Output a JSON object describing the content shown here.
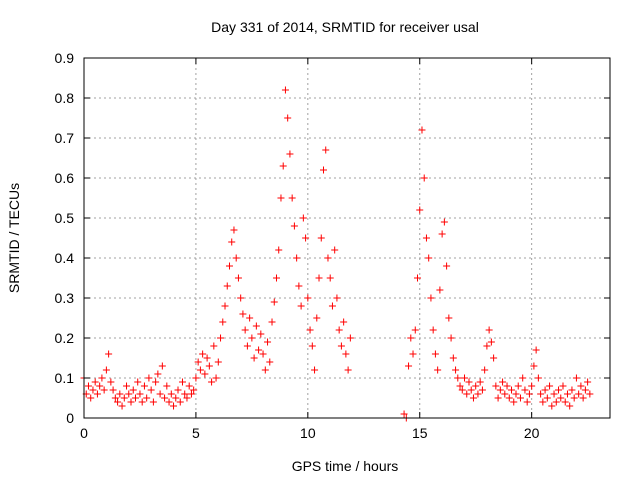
{
  "chart_data": {
    "type": "scatter",
    "title": "Day 331 of 2014, SRMTID for receiver usal",
    "xlabel": "GPS time / hours",
    "ylabel": "SRMTID / TECUs",
    "xlim": [
      0,
      23.5
    ],
    "ylim": [
      0,
      0.9
    ],
    "xticks": [
      0,
      5,
      10,
      15,
      20
    ],
    "xtick_labels": [
      "0",
      "5",
      "10",
      "15",
      "20"
    ],
    "yticks": [
      0,
      0.1,
      0.2,
      0.3,
      0.4,
      0.5,
      0.6,
      0.7,
      0.8,
      0.9
    ],
    "ytick_labels": [
      "0",
      "0.1",
      "0.2",
      "0.3",
      "0.4",
      "0.5",
      "0.6",
      "0.7",
      "0.8",
      "0.9"
    ],
    "grid": true,
    "marker": "+",
    "color": "#ff0000",
    "series": [
      {
        "name": "SRMTID",
        "points": [
          [
            0.0,
            0.1
          ],
          [
            0.1,
            0.06
          ],
          [
            0.2,
            0.08
          ],
          [
            0.3,
            0.05
          ],
          [
            0.4,
            0.07
          ],
          [
            0.5,
            0.09
          ],
          [
            0.6,
            0.06
          ],
          [
            0.7,
            0.08
          ],
          [
            0.8,
            0.1
          ],
          [
            0.9,
            0.07
          ],
          [
            1.0,
            0.12
          ],
          [
            1.1,
            0.16
          ],
          [
            1.2,
            0.09
          ],
          [
            1.3,
            0.07
          ],
          [
            1.4,
            0.05
          ],
          [
            1.5,
            0.04
          ],
          [
            1.6,
            0.06
          ],
          [
            1.7,
            0.03
          ],
          [
            1.8,
            0.05
          ],
          [
            1.9,
            0.08
          ],
          [
            2.0,
            0.06
          ],
          [
            2.1,
            0.04
          ],
          [
            2.2,
            0.07
          ],
          [
            2.3,
            0.05
          ],
          [
            2.4,
            0.09
          ],
          [
            2.5,
            0.06
          ],
          [
            2.6,
            0.04
          ],
          [
            2.7,
            0.08
          ],
          [
            2.8,
            0.05
          ],
          [
            2.9,
            0.1
          ],
          [
            3.0,
            0.07
          ],
          [
            3.1,
            0.04
          ],
          [
            3.2,
            0.09
          ],
          [
            3.3,
            0.11
          ],
          [
            3.4,
            0.06
          ],
          [
            3.5,
            0.13
          ],
          [
            3.6,
            0.05
          ],
          [
            3.7,
            0.08
          ],
          [
            3.8,
            0.04
          ],
          [
            3.9,
            0.06
          ],
          [
            4.0,
            0.03
          ],
          [
            4.1,
            0.05
          ],
          [
            4.2,
            0.07
          ],
          [
            4.3,
            0.04
          ],
          [
            4.4,
            0.09
          ],
          [
            4.5,
            0.06
          ],
          [
            4.6,
            0.05
          ],
          [
            4.7,
            0.08
          ],
          [
            4.8,
            0.06
          ],
          [
            4.9,
            0.07
          ],
          [
            5.0,
            0.1
          ],
          [
            5.1,
            0.14
          ],
          [
            5.2,
            0.12
          ],
          [
            5.3,
            0.16
          ],
          [
            5.4,
            0.11
          ],
          [
            5.5,
            0.15
          ],
          [
            5.6,
            0.13
          ],
          [
            5.7,
            0.09
          ],
          [
            5.8,
            0.18
          ],
          [
            5.9,
            0.1
          ],
          [
            6.0,
            0.14
          ],
          [
            6.1,
            0.2
          ],
          [
            6.2,
            0.24
          ],
          [
            6.3,
            0.28
          ],
          [
            6.4,
            0.33
          ],
          [
            6.5,
            0.38
          ],
          [
            6.6,
            0.44
          ],
          [
            6.7,
            0.47
          ],
          [
            6.8,
            0.4
          ],
          [
            6.9,
            0.35
          ],
          [
            7.0,
            0.3
          ],
          [
            7.1,
            0.26
          ],
          [
            7.2,
            0.22
          ],
          [
            7.3,
            0.18
          ],
          [
            7.4,
            0.25
          ],
          [
            7.5,
            0.2
          ],
          [
            7.6,
            0.15
          ],
          [
            7.7,
            0.23
          ],
          [
            7.8,
            0.17
          ],
          [
            7.9,
            0.21
          ],
          [
            8.0,
            0.16
          ],
          [
            8.1,
            0.12
          ],
          [
            8.2,
            0.19
          ],
          [
            8.3,
            0.14
          ],
          [
            8.4,
            0.24
          ],
          [
            8.5,
            0.29
          ],
          [
            8.6,
            0.35
          ],
          [
            8.7,
            0.42
          ],
          [
            8.8,
            0.55
          ],
          [
            8.9,
            0.63
          ],
          [
            9.0,
            0.82
          ],
          [
            9.1,
            0.75
          ],
          [
            9.2,
            0.66
          ],
          [
            9.3,
            0.55
          ],
          [
            9.4,
            0.48
          ],
          [
            9.5,
            0.4
          ],
          [
            9.6,
            0.33
          ],
          [
            9.7,
            0.28
          ],
          [
            9.8,
            0.5
          ],
          [
            9.9,
            0.45
          ],
          [
            10.0,
            0.3
          ],
          [
            10.1,
            0.22
          ],
          [
            10.2,
            0.18
          ],
          [
            10.3,
            0.12
          ],
          [
            10.4,
            0.25
          ],
          [
            10.5,
            0.35
          ],
          [
            10.6,
            0.45
          ],
          [
            10.7,
            0.62
          ],
          [
            10.8,
            0.67
          ],
          [
            10.9,
            0.4
          ],
          [
            11.0,
            0.35
          ],
          [
            11.1,
            0.28
          ],
          [
            11.2,
            0.42
          ],
          [
            11.3,
            0.3
          ],
          [
            11.4,
            0.22
          ],
          [
            11.5,
            0.18
          ],
          [
            11.6,
            0.24
          ],
          [
            11.7,
            0.16
          ],
          [
            11.8,
            0.12
          ],
          [
            11.9,
            0.2
          ],
          [
            14.3,
            0.01
          ],
          [
            14.4,
            0.0
          ],
          [
            14.5,
            0.13
          ],
          [
            14.6,
            0.2
          ],
          [
            14.7,
            0.16
          ],
          [
            14.8,
            0.22
          ],
          [
            14.9,
            0.35
          ],
          [
            15.0,
            0.52
          ],
          [
            15.1,
            0.72
          ],
          [
            15.2,
            0.6
          ],
          [
            15.3,
            0.45
          ],
          [
            15.4,
            0.4
          ],
          [
            15.5,
            0.3
          ],
          [
            15.6,
            0.22
          ],
          [
            15.7,
            0.16
          ],
          [
            15.8,
            0.12
          ],
          [
            15.9,
            0.32
          ],
          [
            16.0,
            0.46
          ],
          [
            16.1,
            0.49
          ],
          [
            16.2,
            0.38
          ],
          [
            16.3,
            0.25
          ],
          [
            16.4,
            0.2
          ],
          [
            16.5,
            0.15
          ],
          [
            16.6,
            0.12
          ],
          [
            16.7,
            0.1
          ],
          [
            16.8,
            0.08
          ],
          [
            16.9,
            0.07
          ],
          [
            17.0,
            0.1
          ],
          [
            17.1,
            0.06
          ],
          [
            17.2,
            0.09
          ],
          [
            17.3,
            0.07
          ],
          [
            17.4,
            0.05
          ],
          [
            17.5,
            0.08
          ],
          [
            17.6,
            0.06
          ],
          [
            17.7,
            0.09
          ],
          [
            17.8,
            0.07
          ],
          [
            17.9,
            0.12
          ],
          [
            18.0,
            0.18
          ],
          [
            18.1,
            0.22
          ],
          [
            18.2,
            0.19
          ],
          [
            18.3,
            0.15
          ],
          [
            18.4,
            0.08
          ],
          [
            18.5,
            0.05
          ],
          [
            18.6,
            0.07
          ],
          [
            18.7,
            0.09
          ],
          [
            18.8,
            0.06
          ],
          [
            18.9,
            0.08
          ],
          [
            19.0,
            0.05
          ],
          [
            19.1,
            0.07
          ],
          [
            19.2,
            0.04
          ],
          [
            19.3,
            0.06
          ],
          [
            19.4,
            0.08
          ],
          [
            19.5,
            0.05
          ],
          [
            19.6,
            0.1
          ],
          [
            19.7,
            0.07
          ],
          [
            19.8,
            0.04
          ],
          [
            19.9,
            0.06
          ],
          [
            20.0,
            0.08
          ],
          [
            20.1,
            0.13
          ],
          [
            20.2,
            0.17
          ],
          [
            20.3,
            0.1
          ],
          [
            20.4,
            0.06
          ],
          [
            20.5,
            0.04
          ],
          [
            20.6,
            0.07
          ],
          [
            20.7,
            0.05
          ],
          [
            20.8,
            0.08
          ],
          [
            20.9,
            0.03
          ],
          [
            21.0,
            0.06
          ],
          [
            21.1,
            0.04
          ],
          [
            21.2,
            0.07
          ],
          [
            21.3,
            0.05
          ],
          [
            21.4,
            0.08
          ],
          [
            21.5,
            0.04
          ],
          [
            21.6,
            0.06
          ],
          [
            21.7,
            0.03
          ],
          [
            21.8,
            0.07
          ],
          [
            21.9,
            0.05
          ],
          [
            22.0,
            0.1
          ],
          [
            22.1,
            0.06
          ],
          [
            22.2,
            0.08
          ],
          [
            22.3,
            0.05
          ],
          [
            22.4,
            0.07
          ],
          [
            22.5,
            0.09
          ],
          [
            22.6,
            0.06
          ]
        ]
      }
    ]
  }
}
